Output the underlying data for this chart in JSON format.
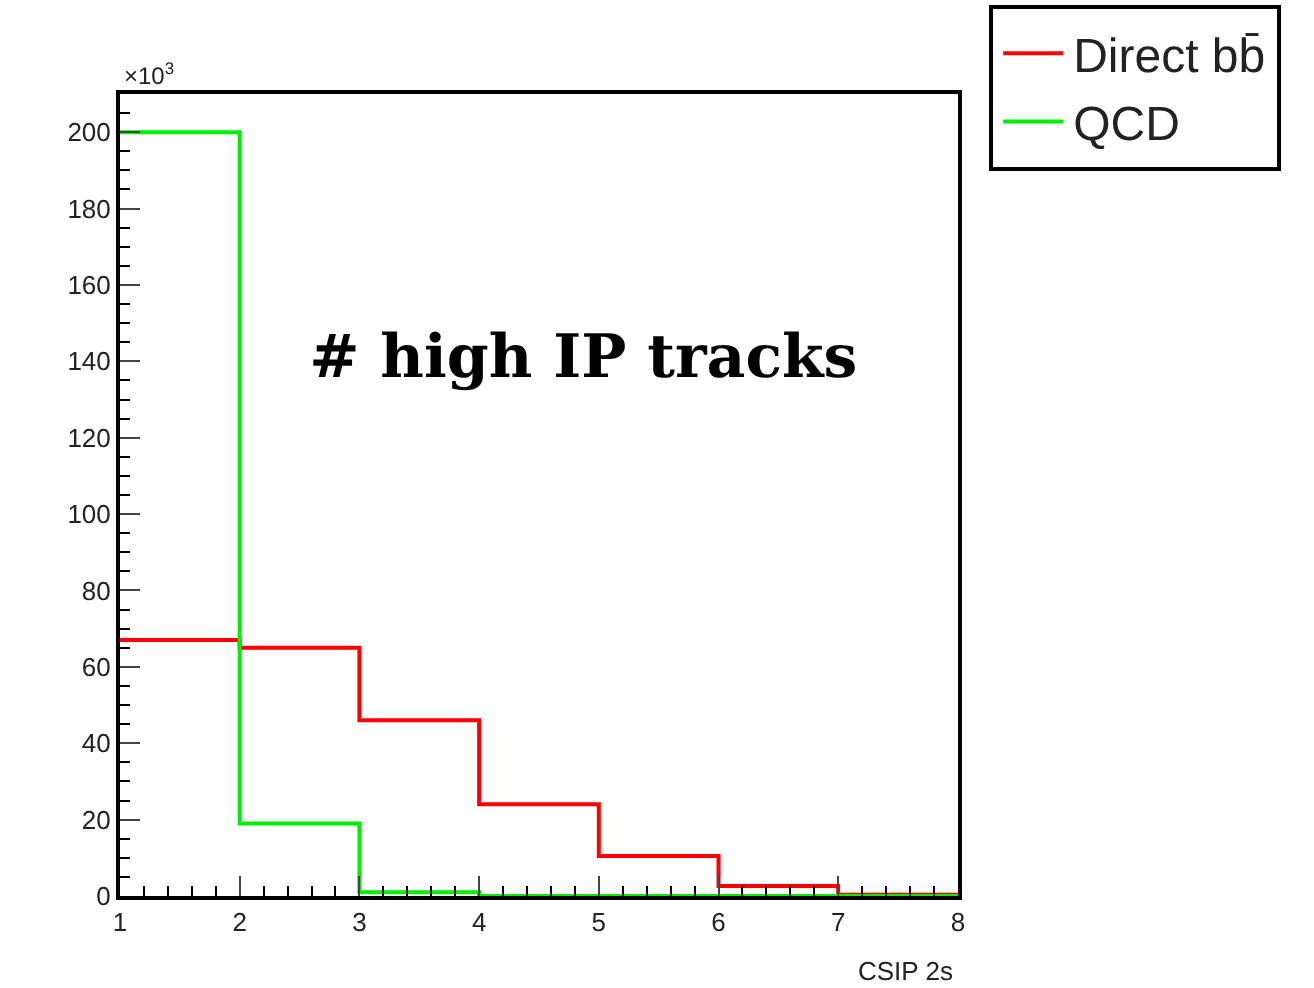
{
  "chart_data": {
    "type": "histogram",
    "title": "# high IP tracks",
    "xlabel": "CSIP 2s",
    "annotations": [
      "×10$^{3}$"
    ],
    "bins": [
      1,
      2,
      3,
      4,
      5,
      6,
      7,
      8
    ],
    "series": [
      {
        "name": "Direct bb̄",
        "color": "#ff0000",
        "values": [
          67,
          65,
          46,
          24,
          10.5,
          2.6,
          0.3
        ]
      },
      {
        "name": "QCD",
        "color": "#00ee00",
        "values": [
          200,
          19,
          1,
          0,
          0,
          0,
          0
        ]
      }
    ],
    "xlim": [
      1,
      8
    ],
    "xticks": [
      1,
      2,
      3,
      4,
      5,
      6,
      7,
      8
    ],
    "ylim": [
      0,
      210
    ],
    "yticks": [
      0,
      20,
      40,
      60,
      80,
      100,
      120,
      140,
      160,
      180,
      200
    ],
    "legend": "top right"
  }
}
